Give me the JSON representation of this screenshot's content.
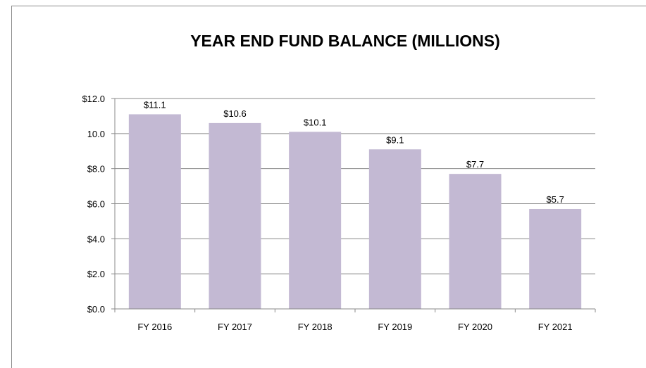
{
  "chart_data": {
    "type": "bar",
    "title": "YEAR END FUND BALANCE (MILLIONS)",
    "xlabel": "",
    "ylabel": "",
    "categories": [
      "FY 2016",
      "FY 2017",
      "FY 2018",
      "FY 2019",
      "FY 2020",
      "FY 2021"
    ],
    "values": [
      11.1,
      10.6,
      10.1,
      9.1,
      7.7,
      5.7
    ],
    "data_labels": [
      "$11.1",
      "$10.6",
      "$10.1",
      "$9.1",
      "$7.7",
      "$5.7"
    ],
    "ylim": [
      0,
      12
    ],
    "yticks": [
      0,
      2,
      4,
      6,
      8,
      10,
      12
    ],
    "ytick_labels": [
      "$0.0",
      "$2.0",
      "$4.0",
      "$6.0",
      "$8.0",
      "10.0",
      "$12.0"
    ],
    "grid": true,
    "legend": "none",
    "bar_color": "#c3b9d3",
    "gridline_color": "#8a8a8a"
  }
}
